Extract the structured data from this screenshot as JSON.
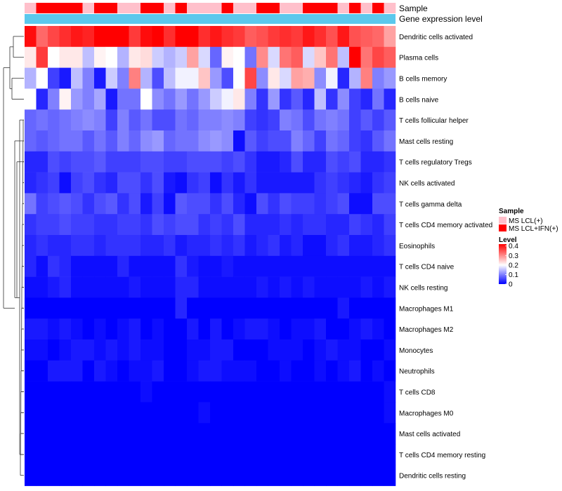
{
  "chart_data": {
    "type": "heatmap",
    "title": "",
    "annotation_labels": [
      "Sample",
      "Gene expression level"
    ],
    "samples": [
      "MS LCL(+)",
      "MS LCL+IFN(+)",
      "MS LCL+IFN(+)",
      "MS LCL+IFN(+)",
      "MS LCL+IFN(+)",
      "MS LCL(+)",
      "MS LCL+IFN(+)",
      "MS LCL+IFN(+)",
      "MS LCL(+)",
      "MS LCL(+)",
      "MS LCL+IFN(+)",
      "MS LCL+IFN(+)",
      "MS LCL(+)",
      "MS LCL+IFN(+)",
      "MS LCL(+)",
      "MS LCL(+)",
      "MS LCL(+)",
      "MS LCL+IFN(+)",
      "MS LCL(+)",
      "MS LCL(+)",
      "MS LCL+IFN(+)",
      "MS LCL+IFN(+)",
      "MS LCL(+)",
      "MS LCL(+)",
      "MS LCL+IFN(+)",
      "MS LCL+IFN(+)",
      "MS LCL+IFN(+)",
      "MS LCL(+)",
      "MS LCL+IFN(+)",
      "MS LCL(+)",
      "MS LCL+IFN(+)",
      "MS LCL(+)"
    ],
    "expression_level_color": "#5bc8ec",
    "rows": [
      "Dendritic cells activated",
      "Plasma cells",
      "B cells memory",
      "B cells naive",
      "T cells follicular helper",
      "Mast cells resting",
      "T cells regulatory  Tregs",
      "NK cells activated",
      "T cells gamma delta",
      "T cells CD4 memory activated",
      "Eosinophils",
      "T cells CD4 naive",
      "NK cells resting",
      "Macrophages M1",
      "Macrophages M2",
      "Monocytes",
      "Neutrophils",
      "T cells CD8",
      "Macrophages M0",
      "Mast cells activated",
      "T cells CD4 memory resting",
      "Dendritic cells resting"
    ],
    "values": [
      [
        0.41,
        0.33,
        0.36,
        0.38,
        0.4,
        0.39,
        0.42,
        0.42,
        0.42,
        0.37,
        0.41,
        0.42,
        0.38,
        0.42,
        0.42,
        0.38,
        0.4,
        0.38,
        0.37,
        0.34,
        0.35,
        0.37,
        0.38,
        0.37,
        0.4,
        0.38,
        0.35,
        0.4,
        0.35,
        0.34,
        0.33,
        0.28
      ],
      [
        0.22,
        0.37,
        0.2,
        0.22,
        0.22,
        0.15,
        0.21,
        0.2,
        0.14,
        0.22,
        0.23,
        0.16,
        0.14,
        0.16,
        0.28,
        0.17,
        0.08,
        0.21,
        0.2,
        0.09,
        0.3,
        0.17,
        0.32,
        0.34,
        0.17,
        0.25,
        0.32,
        0.15,
        0.42,
        0.32,
        0.36,
        0.34
      ],
      [
        0.14,
        0.2,
        0.05,
        0.02,
        0.15,
        0.1,
        0.02,
        0.16,
        0.1,
        0.31,
        0.14,
        0.06,
        0.15,
        0.19,
        0.19,
        0.25,
        0.12,
        0.06,
        0.2,
        0.36,
        0.11,
        0.22,
        0.17,
        0.28,
        0.27,
        0.11,
        0.19,
        0.03,
        0.14,
        0.31,
        0.1,
        0.12
      ],
      [
        0.2,
        0.03,
        0.1,
        0.21,
        0.12,
        0.1,
        0.13,
        0.02,
        0.09,
        0.09,
        0.2,
        0.11,
        0.09,
        0.12,
        0.09,
        0.12,
        0.16,
        0.19,
        0.22,
        0.1,
        0.04,
        0.12,
        0.04,
        0.07,
        0.03,
        0.15,
        0.04,
        0.11,
        0.05,
        0.03,
        0.09,
        0.03
      ],
      [
        0.08,
        0.09,
        0.08,
        0.09,
        0.1,
        0.11,
        0.1,
        0.05,
        0.1,
        0.07,
        0.09,
        0.06,
        0.06,
        0.09,
        0.08,
        0.1,
        0.1,
        0.11,
        0.1,
        0.05,
        0.04,
        0.05,
        0.1,
        0.09,
        0.06,
        0.09,
        0.1,
        0.09,
        0.05,
        0.07,
        0.05,
        0.07
      ],
      [
        0.08,
        0.07,
        0.08,
        0.09,
        0.09,
        0.07,
        0.09,
        0.07,
        0.1,
        0.08,
        0.11,
        0.12,
        0.08,
        0.09,
        0.09,
        0.11,
        0.12,
        0.11,
        0.01,
        0.07,
        0.05,
        0.06,
        0.06,
        0.1,
        0.08,
        0.05,
        0.09,
        0.08,
        0.05,
        0.04,
        0.07,
        0.09
      ],
      [
        0.03,
        0.03,
        0.06,
        0.05,
        0.06,
        0.06,
        0.07,
        0.05,
        0.05,
        0.05,
        0.06,
        0.06,
        0.05,
        0.05,
        0.06,
        0.06,
        0.06,
        0.05,
        0.06,
        0.04,
        0.02,
        0.02,
        0.03,
        0.06,
        0.03,
        0.03,
        0.06,
        0.05,
        0.06,
        0.03,
        0.03,
        0.04
      ],
      [
        0.03,
        0.04,
        0.05,
        0.01,
        0.05,
        0.06,
        0.04,
        0.03,
        0.06,
        0.06,
        0.04,
        0.06,
        0.02,
        0.01,
        0.04,
        0.05,
        0.01,
        0.04,
        0.02,
        0.04,
        0.02,
        0.02,
        0.02,
        0.02,
        0.02,
        0.04,
        0.05,
        0.04,
        0.03,
        0.02,
        0.04,
        0.05
      ],
      [
        0.09,
        0.05,
        0.06,
        0.07,
        0.06,
        0.04,
        0.06,
        0.07,
        0.04,
        0.06,
        0.02,
        0.05,
        0.01,
        0.07,
        0.06,
        0.06,
        0.04,
        0.06,
        0.03,
        0.01,
        0.06,
        0.04,
        0.06,
        0.05,
        0.05,
        0.04,
        0.05,
        0.06,
        0.01,
        0.01,
        0.06,
        0.06
      ],
      [
        0.04,
        0.05,
        0.05,
        0.06,
        0.05,
        0.05,
        0.04,
        0.04,
        0.05,
        0.05,
        0.04,
        0.06,
        0.05,
        0.06,
        0.06,
        0.04,
        0.05,
        0.04,
        0.06,
        0.03,
        0.03,
        0.03,
        0.04,
        0.03,
        0.04,
        0.04,
        0.03,
        0.03,
        0.05,
        0.04,
        0.03,
        0.05
      ],
      [
        0.03,
        0.04,
        0.03,
        0.03,
        0.04,
        0.04,
        0.03,
        0.04,
        0.04,
        0.04,
        0.03,
        0.03,
        0.04,
        0.02,
        0.03,
        0.03,
        0.04,
        0.03,
        0.04,
        0.02,
        0.03,
        0.04,
        0.02,
        0.03,
        0.01,
        0.01,
        0.03,
        0.04,
        0.02,
        0.02,
        0.03,
        0.04
      ],
      [
        0.03,
        0.01,
        0.04,
        0.03,
        0.01,
        0.01,
        0.01,
        0.01,
        0.03,
        0.01,
        0.01,
        0.01,
        0.01,
        0.04,
        0.02,
        0.01,
        0.01,
        0.02,
        0.01,
        0.01,
        0.01,
        0.01,
        0.01,
        0.01,
        0.01,
        0.01,
        0.01,
        0.01,
        0.01,
        0.01,
        0.01,
        0.01
      ],
      [
        0.01,
        0.01,
        0.02,
        0.03,
        0.01,
        0.01,
        0.01,
        0.01,
        0.01,
        0.02,
        0.01,
        0.01,
        0.01,
        0.03,
        0.03,
        0.01,
        0.01,
        0.01,
        0.01,
        0.01,
        0.02,
        0.01,
        0.02,
        0.01,
        0.02,
        0.01,
        0.01,
        0.01,
        0.01,
        0.02,
        0.01,
        0.02
      ],
      [
        0.0,
        0.0,
        0.0,
        0.0,
        0.0,
        0.0,
        0.0,
        0.0,
        0.0,
        0.0,
        0.0,
        0.0,
        0.0,
        0.03,
        0.0,
        0.0,
        0.0,
        0.0,
        0.0,
        0.0,
        0.0,
        0.0,
        0.0,
        0.0,
        0.0,
        0.0,
        0.0,
        0.02,
        0.0,
        0.0,
        0.0,
        0.0
      ],
      [
        0.02,
        0.02,
        0.01,
        0.02,
        0.01,
        0.0,
        0.01,
        0.0,
        0.01,
        0.02,
        0.0,
        0.01,
        0.0,
        0.0,
        0.02,
        0.0,
        0.02,
        0.0,
        0.01,
        0.02,
        0.02,
        0.01,
        0.0,
        0.01,
        0.01,
        0.02,
        0.0,
        0.0,
        0.01,
        0.02,
        0.01,
        0.0
      ],
      [
        0.01,
        0.01,
        0.0,
        0.01,
        0.02,
        0.02,
        0.01,
        0.02,
        0.01,
        0.02,
        0.01,
        0.01,
        0.0,
        0.0,
        0.01,
        0.01,
        0.02,
        0.02,
        0.0,
        0.0,
        0.0,
        0.01,
        0.01,
        0.01,
        0.0,
        0.01,
        0.02,
        0.01,
        0.01,
        0.0,
        0.0,
        0.01
      ],
      [
        0.0,
        0.0,
        0.02,
        0.02,
        0.02,
        0.0,
        0.02,
        0.01,
        0.0,
        0.01,
        0.01,
        0.02,
        0.0,
        0.0,
        0.01,
        0.02,
        0.02,
        0.01,
        0.01,
        0.01,
        0.0,
        0.0,
        0.01,
        0.0,
        0.0,
        0.01,
        0.0,
        0.01,
        0.02,
        0.0,
        0.01,
        0.0
      ],
      [
        0.0,
        0.0,
        0.0,
        0.0,
        0.0,
        0.0,
        0.0,
        0.0,
        0.0,
        0.0,
        0.01,
        0.0,
        0.0,
        0.0,
        0.0,
        0.0,
        0.0,
        0.0,
        0.0,
        0.0,
        0.0,
        0.0,
        0.0,
        0.0,
        0.0,
        0.0,
        0.0,
        0.0,
        0.0,
        0.0,
        0.0,
        0.01
      ],
      [
        0.0,
        0.0,
        0.0,
        0.0,
        0.0,
        0.0,
        0.0,
        0.0,
        0.0,
        0.0,
        0.0,
        0.0,
        0.0,
        0.0,
        0.0,
        0.01,
        0.0,
        0.0,
        0.0,
        0.0,
        0.0,
        0.0,
        0.0,
        0.0,
        0.0,
        0.0,
        0.0,
        0.0,
        0.0,
        0.0,
        0.0,
        0.01
      ],
      [
        0.0,
        0.0,
        0.0,
        0.0,
        0.0,
        0.0,
        0.0,
        0.0,
        0.0,
        0.0,
        0.0,
        0.0,
        0.0,
        0.0,
        0.0,
        0.0,
        0.0,
        0.0,
        0.0,
        0.0,
        0.0,
        0.0,
        0.0,
        0.0,
        0.0,
        0.0,
        0.0,
        0.0,
        0.0,
        0.0,
        0.0,
        0.0
      ],
      [
        0.0,
        0.0,
        0.0,
        0.0,
        0.0,
        0.0,
        0.0,
        0.0,
        0.0,
        0.0,
        0.0,
        0.0,
        0.0,
        0.0,
        0.0,
        0.0,
        0.0,
        0.0,
        0.0,
        0.0,
        0.0,
        0.0,
        0.0,
        0.0,
        0.0,
        0.0,
        0.0,
        0.0,
        0.0,
        0.0,
        0.0,
        0.0
      ],
      [
        0.0,
        0.0,
        0.0,
        0.0,
        0.0,
        0.0,
        0.0,
        0.0,
        0.0,
        0.0,
        0.0,
        0.0,
        0.0,
        0.0,
        0.0,
        0.0,
        0.0,
        0.0,
        0.0,
        0.0,
        0.0,
        0.0,
        0.0,
        0.0,
        0.0,
        0.0,
        0.0,
        0.0,
        0.0,
        0.0,
        0.0,
        0.0
      ]
    ],
    "color_scale": {
      "min": 0,
      "mid": 0.2,
      "max": 0.42,
      "low_color": "#0000ff",
      "mid_color": "#ffffff",
      "high_color": "#ff0000"
    },
    "legend": {
      "placement": "right",
      "sample_title": "Sample",
      "sample_items": [
        {
          "label": "MS LCL(+)",
          "color": "#ffc0cb"
        },
        {
          "label": "MS LCL+IFN(+)",
          "color": "#ff0000"
        }
      ],
      "level_title": "Level",
      "level_ticks": [
        "0.4",
        "0.3",
        "0.2",
        "0.1",
        "0"
      ],
      "level_tick_values": [
        0.4,
        0.3,
        0.2,
        0.1,
        0
      ]
    },
    "dendrogram": "rows"
  }
}
